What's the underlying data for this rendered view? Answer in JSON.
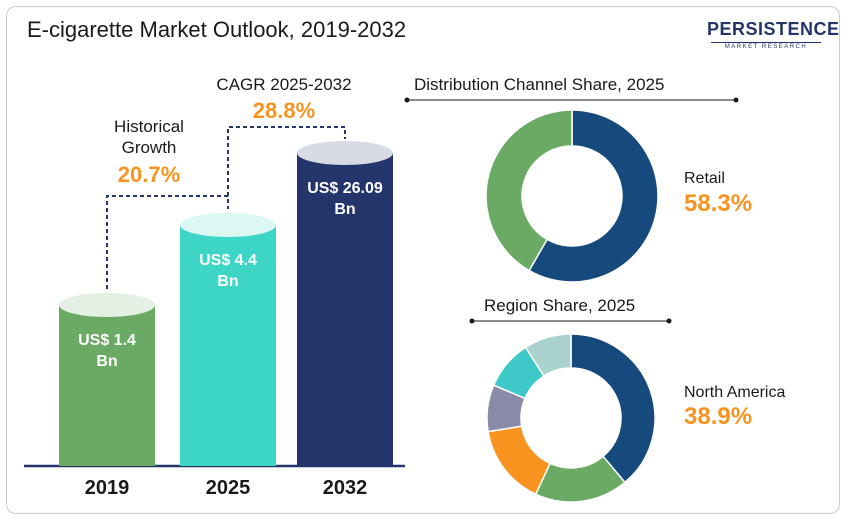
{
  "title": "E-cigarette Market Outlook, 2019-2032",
  "logo": {
    "main": "PERSISTENCE",
    "sub": "MARKET RESEARCH"
  },
  "chart_data": [
    {
      "type": "bar",
      "categories": [
        "2019",
        "2025",
        "2032"
      ],
      "values": [
        1.4,
        4.4,
        26.09
      ],
      "value_labels": [
        "US$ 1.4 Bn",
        "US$ 4.4 Bn",
        "US$ 26.09 Bn"
      ],
      "colors": [
        "#6aaa64",
        "#3dd6c6",
        "#23356a"
      ],
      "annotations": [
        {
          "label": "Historical Growth",
          "value": "20.7%"
        },
        {
          "label": "CAGR 2025-2032",
          "value": "28.8%"
        }
      ]
    },
    {
      "type": "pie",
      "title": "Distribution Channel Share, 2025",
      "slices": [
        {
          "value": 58.3,
          "color": "#174a7c"
        },
        {
          "value": 41.7,
          "color": "#6aaa64"
        }
      ],
      "highlight": {
        "label": "Retail",
        "value": "58.3%"
      }
    },
    {
      "type": "pie",
      "title": "Region Share, 2025",
      "slices": [
        {
          "value": 38.9,
          "color": "#174a7c"
        },
        {
          "value": 18.0,
          "color": "#6aaa64"
        },
        {
          "value": 15.5,
          "color": "#f7931e"
        },
        {
          "value": 9.0,
          "color": "#8b8aa8"
        },
        {
          "value": 9.5,
          "color": "#3ec8c8"
        },
        {
          "value": 9.1,
          "color": "#a9d2cf"
        }
      ],
      "highlight": {
        "label": "North America",
        "value": "38.9%"
      }
    }
  ]
}
